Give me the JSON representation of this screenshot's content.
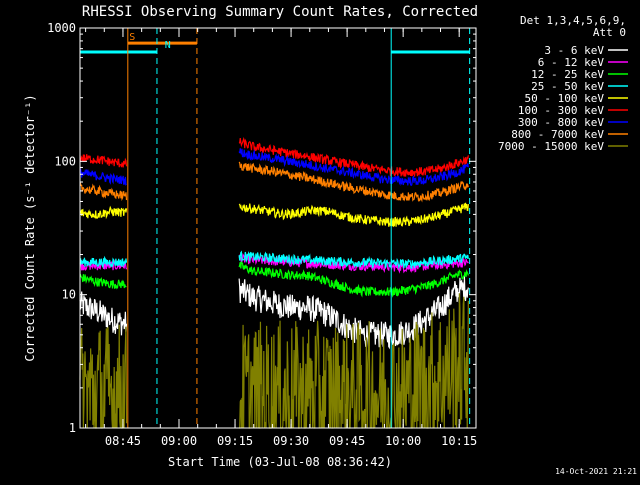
{
  "chart_data": {
    "type": "line",
    "title": "RHESSI Observing Summary Count Rates, Corrected",
    "xlabel": "Start Time (03-Jul-08 08:36:42)",
    "ylabel": "Corrected Count Rate (s⁻¹ detector⁻¹)",
    "yscale": "log",
    "ylim": [
      1,
      1000
    ],
    "xlim_minutes": [
      513.5,
      619.5
    ],
    "yticks": [
      {
        "value": 1,
        "label": "1"
      },
      {
        "value": 10,
        "label": "10"
      },
      {
        "value": 100,
        "label": "100"
      },
      {
        "value": 1000,
        "label": "1000"
      }
    ],
    "xticks": [
      {
        "minute": 525,
        "label": "08:45"
      },
      {
        "minute": 540,
        "label": "09:00"
      },
      {
        "minute": 555,
        "label": "09:15"
      },
      {
        "minute": 570,
        "label": "09:30"
      },
      {
        "minute": 585,
        "label": "09:45"
      },
      {
        "minute": 600,
        "label": "10:00"
      },
      {
        "minute": 615,
        "label": "10:15"
      }
    ],
    "x_unit": "minutes after 00:00 UT",
    "legend_header": [
      "Det 1,3,4,5,6,9,",
      "Att 0"
    ],
    "legend_position": "right",
    "series": [
      {
        "name": "3 - 6 keV",
        "color": "#ffffff",
        "x": [
          513.5,
          518,
          522,
          526,
          526.8,
          535,
          550,
          556,
          560,
          566,
          570,
          574,
          578,
          582,
          586,
          590,
          594,
          598,
          602,
          606,
          610,
          614,
          617.5
        ],
        "y": [
          8.5,
          7.5,
          6.5,
          6.0,
          0,
          0,
          0,
          11.0,
          9.5,
          8.5,
          8.0,
          8.0,
          7.5,
          6.5,
          5.5,
          5.0,
          5.0,
          5.0,
          5.5,
          6.5,
          8.0,
          10.5,
          11.5
        ]
      },
      {
        "name": "6 - 12 keV",
        "color": "#ff00ff",
        "x": [
          513.5,
          526,
          526.8,
          535,
          550,
          556,
          570,
          586,
          602,
          617.5
        ],
        "y": [
          16.5,
          16.5,
          0,
          0,
          0,
          18.5,
          17.5,
          16.5,
          16.0,
          17.5
        ]
      },
      {
        "name": "12 - 25 keV",
        "color": "#00ff00",
        "x": [
          513.5,
          518,
          522,
          526,
          526.8,
          535,
          550,
          556,
          560,
          566,
          570,
          574,
          578,
          582,
          586,
          590,
          594,
          598,
          602,
          606,
          610,
          614,
          617.5
        ],
        "y": [
          13.5,
          12.5,
          12.0,
          12.0,
          0,
          0,
          0,
          16.5,
          15.0,
          14.5,
          14.0,
          14.0,
          13.0,
          12.0,
          11.0,
          10.5,
          10.5,
          10.5,
          11.0,
          11.5,
          12.5,
          14.0,
          14.5
        ]
      },
      {
        "name": "25 - 50 keV",
        "color": "#00ffff",
        "x": [
          513.5,
          526,
          526.8,
          535,
          550,
          556,
          570,
          586,
          602,
          617.5
        ],
        "y": [
          17.5,
          17.5,
          0,
          0,
          0,
          19.5,
          18.5,
          17.5,
          17.0,
          19.0
        ]
      },
      {
        "name": "50 - 100 keV",
        "color": "#ffff00",
        "x": [
          513.5,
          518,
          522,
          526,
          526.8,
          535,
          550,
          556,
          560,
          564,
          568,
          572,
          576,
          580,
          584,
          588,
          592,
          596,
          600,
          604,
          608,
          612,
          617.5
        ],
        "y": [
          41,
          40,
          42,
          41,
          0,
          0,
          0,
          46,
          44,
          42,
          40,
          41,
          43,
          42,
          39,
          37,
          36,
          35,
          35,
          36,
          38,
          41,
          46
        ]
      },
      {
        "name": "100 - 300 keV",
        "color": "#ff0000",
        "x": [
          513.5,
          518,
          522,
          526,
          526.8,
          535,
          550,
          556,
          560,
          566,
          570,
          574,
          578,
          582,
          586,
          590,
          594,
          598,
          602,
          606,
          610,
          614,
          617.5
        ],
        "y": [
          106,
          103,
          99,
          95,
          0,
          0,
          0,
          140,
          128,
          120,
          114,
          110,
          104,
          99,
          95,
          90,
          87,
          84,
          83,
          84,
          88,
          96,
          104
        ]
      },
      {
        "name": "300 - 800 keV",
        "color": "#0000ff",
        "x": [
          513.5,
          518,
          522,
          526,
          526.8,
          535,
          550,
          556,
          560,
          566,
          570,
          574,
          578,
          582,
          586,
          590,
          594,
          598,
          602,
          606,
          610,
          614,
          617.5
        ],
        "y": [
          82,
          78,
          74,
          72,
          0,
          0,
          0,
          118,
          110,
          104,
          99,
          95,
          90,
          86,
          82,
          78,
          74,
          72,
          71,
          72,
          76,
          82,
          90
        ]
      },
      {
        "name": "800 - 7000 keV",
        "color": "#ff8000",
        "x": [
          513.5,
          518,
          522,
          526,
          526.8,
          535,
          550,
          556,
          560,
          566,
          570,
          574,
          578,
          582,
          586,
          590,
          594,
          598,
          602,
          606,
          610,
          614,
          617.5
        ],
        "y": [
          63,
          60,
          57,
          55,
          0,
          0,
          0,
          94,
          88,
          83,
          79,
          75,
          71,
          67,
          63,
          60,
          57,
          55,
          54,
          55,
          58,
          63,
          68
        ]
      },
      {
        "name": "7000 - 15000 keV",
        "color": "#808000",
        "x": [
          513.5,
          526,
          526.8,
          535,
          550,
          556,
          580,
          600,
          607,
          612,
          615,
          617.5
        ],
        "y": [
          1.8,
          1.8,
          0,
          0,
          0,
          1.8,
          1.8,
          1.8,
          2.2,
          2.6,
          3.0,
          3.3
        ]
      }
    ],
    "annotations": [
      {
        "text": "S",
        "color": "#ff8000",
        "x_minutes": 527.5,
        "y": 760
      },
      {
        "text": "N",
        "color": "#00ffff",
        "x_minutes": 537,
        "y": 660
      }
    ],
    "flags": [
      {
        "name": "SAA",
        "color": "#ff8000",
        "x0_minutes": 526.3,
        "x1_minutes": 544.8,
        "level": 770
      },
      {
        "name": "Night",
        "color": "#00ffff",
        "x0_minutes": 513.5,
        "x1_minutes": 534.1,
        "level": 660
      },
      {
        "name": "Night",
        "color": "#00ffff",
        "x0_minutes": 596.8,
        "x1_minutes": 617.8,
        "level": 660
      }
    ],
    "vertical_markers": [
      {
        "color": "#ff8000",
        "minute": 526.3,
        "style": "solid"
      },
      {
        "color": "#00ffff",
        "minute": 534.1,
        "style": "dashed"
      },
      {
        "color": "#ff8000",
        "minute": 544.8,
        "style": "dashed"
      },
      {
        "color": "#00ffff",
        "minute": 596.8,
        "style": "solid"
      },
      {
        "color": "#00ffff",
        "minute": 617.8,
        "style": "dashed"
      }
    ],
    "footer_date": "14-Oct-2021 21:21"
  }
}
